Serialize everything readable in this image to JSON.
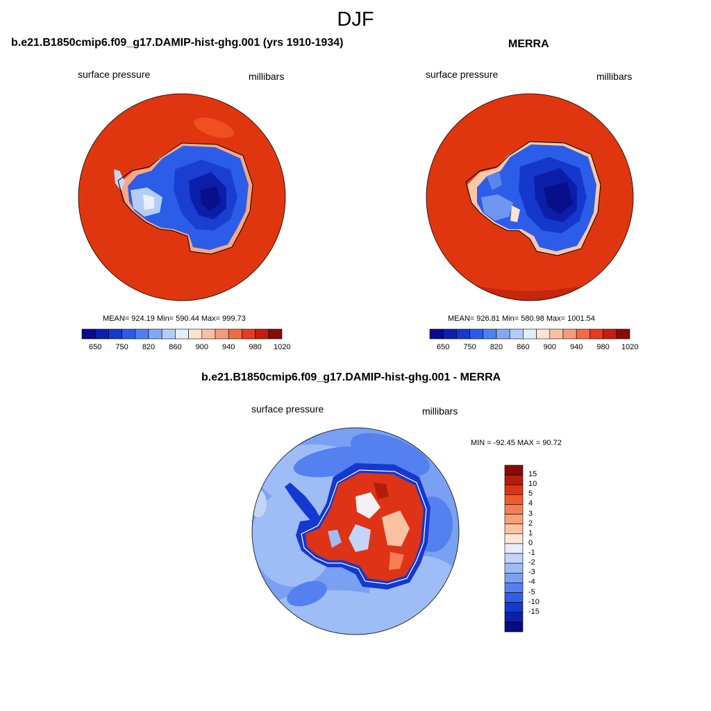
{
  "season": "DJF",
  "panels": [
    {
      "title": "b.e21.B1850cmip6.f09_g17.DAMIP-hist-ghg.001 (yrs 1910-1934)",
      "variable": "surface pressure",
      "units": "millibars",
      "stats": "MEAN= 924.19  Min= 590.44  Max= 999.73",
      "colorbar": {
        "colors": [
          "#0a0a8c",
          "#0d1fb0",
          "#1738cf",
          "#2a5cec",
          "#4f80f2",
          "#82a8f5",
          "#b4cdf7",
          "#e4eefb",
          "#fde4d2",
          "#f9c0a4",
          "#f59c7a",
          "#ef6d44",
          "#e73a1e",
          "#c51e0d",
          "#8b0a04"
        ],
        "ticks": [
          "650",
          "750",
          "820",
          "860",
          "900",
          "940",
          "980",
          "1020"
        ]
      }
    },
    {
      "title": "MERRA",
      "variable": "surface pressure",
      "units": "millibars",
      "stats": "MEAN= 926.81  Min= 580.98  Max= 1001.54",
      "colorbar": {
        "colors": [
          "#0a0a8c",
          "#0d1fb0",
          "#1738cf",
          "#2a5cec",
          "#4f80f2",
          "#82a8f5",
          "#b4cdf7",
          "#e4eefb",
          "#fde4d2",
          "#f9c0a4",
          "#f59c7a",
          "#ef6d44",
          "#e73a1e",
          "#c51e0d",
          "#8b0a04"
        ],
        "ticks": [
          "650",
          "750",
          "820",
          "860",
          "900",
          "940",
          "980",
          "1020"
        ]
      }
    },
    {
      "title": "b.e21.B1850cmip6.f09_g17.DAMIP-hist-ghg.001 - MERRA",
      "variable": "surface pressure",
      "units": "millibars",
      "stats": "MIN = -92.45 MAX =  90.72",
      "colorbar": {
        "colors": [
          "#8b0a04",
          "#b51c0c",
          "#de3316",
          "#f45a2e",
          "#f77e54",
          "#f9a078",
          "#fbc3a3",
          "#fde6d6",
          "#e6eefb",
          "#c2d5f7",
          "#9ebcf5",
          "#7aa0f2",
          "#5580ef",
          "#2f5ee8",
          "#1538d0",
          "#0c21a8",
          "#070c80"
        ],
        "ticks": [
          "15",
          "10",
          "5",
          "4",
          "3",
          "2",
          "1",
          "0",
          "-1",
          "-2",
          "-3",
          "-4",
          "-5",
          "-10",
          "-15"
        ]
      }
    }
  ]
}
